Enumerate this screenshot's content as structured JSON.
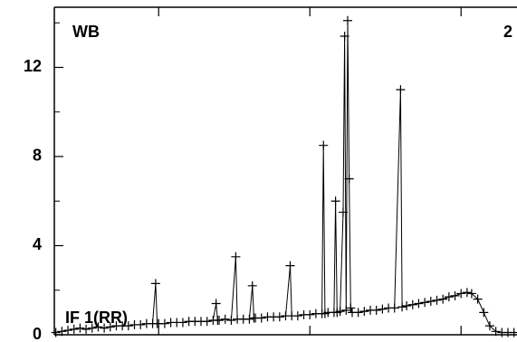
{
  "chart_data": {
    "type": "line",
    "annotations": [
      "WB",
      "2",
      "IF 1(RR)"
    ],
    "x": [
      32,
      36,
      40,
      44,
      48,
      52,
      56,
      60,
      64,
      68,
      72,
      76,
      80,
      84,
      88,
      92,
      96,
      98,
      99,
      100,
      104,
      108,
      112,
      116,
      120,
      124,
      128,
      132,
      136,
      138,
      139,
      140,
      144,
      148,
      151,
      152,
      156,
      160,
      162,
      163,
      164,
      168,
      172,
      176,
      180,
      184,
      187,
      188,
      192,
      196,
      200,
      204,
      208,
      209,
      210,
      212,
      216,
      217,
      218,
      220,
      222,
      223,
      224,
      225,
      226,
      227,
      228,
      232,
      236,
      240,
      244,
      248,
      252,
      256,
      260,
      261,
      264,
      268,
      272,
      276,
      280,
      284,
      288,
      292,
      296,
      300,
      304,
      307,
      311,
      315,
      319,
      323,
      327,
      331,
      335
    ],
    "series": [
      {
        "color": "#000000",
        "values": [
          0.1,
          0.15,
          0.2,
          0.25,
          0.3,
          0.25,
          0.3,
          0.35,
          0.3,
          0.35,
          0.4,
          0.4,
          0.4,
          0.45,
          0.45,
          0.5,
          0.5,
          2.3,
          0.5,
          0.5,
          0.5,
          0.55,
          0.55,
          0.55,
          0.6,
          0.6,
          0.6,
          0.6,
          0.65,
          1.4,
          0.65,
          0.65,
          0.7,
          0.65,
          3.5,
          0.7,
          0.7,
          0.7,
          2.2,
          0.75,
          0.75,
          0.75,
          0.8,
          0.8,
          0.8,
          0.85,
          3.1,
          0.85,
          0.85,
          0.9,
          0.9,
          0.95,
          0.95,
          8.5,
          0.95,
          1.0,
          1.0,
          6.0,
          1.0,
          1.05,
          5.5,
          13.4,
          1.1,
          14.1,
          7.0,
          1.2,
          1.0,
          1.0,
          1.05,
          1.1,
          1.1,
          1.15,
          1.2,
          1.2,
          11.0,
          1.25,
          1.3,
          1.35,
          1.4,
          1.45,
          1.5,
          1.55,
          1.6,
          1.7,
          1.75,
          1.85,
          1.9,
          1.85,
          1.6,
          1.0,
          0.4,
          0.15,
          0.1,
          0.1,
          0.1
        ]
      }
    ],
    "xlim": [
      31,
      337
    ],
    "xticks": [
      100,
      200,
      300
    ],
    "ylim": [
      0,
      14.7
    ],
    "yticks": [
      0,
      4,
      8,
      12
    ],
    "yminorticks": [
      2,
      6,
      10,
      14
    ]
  }
}
